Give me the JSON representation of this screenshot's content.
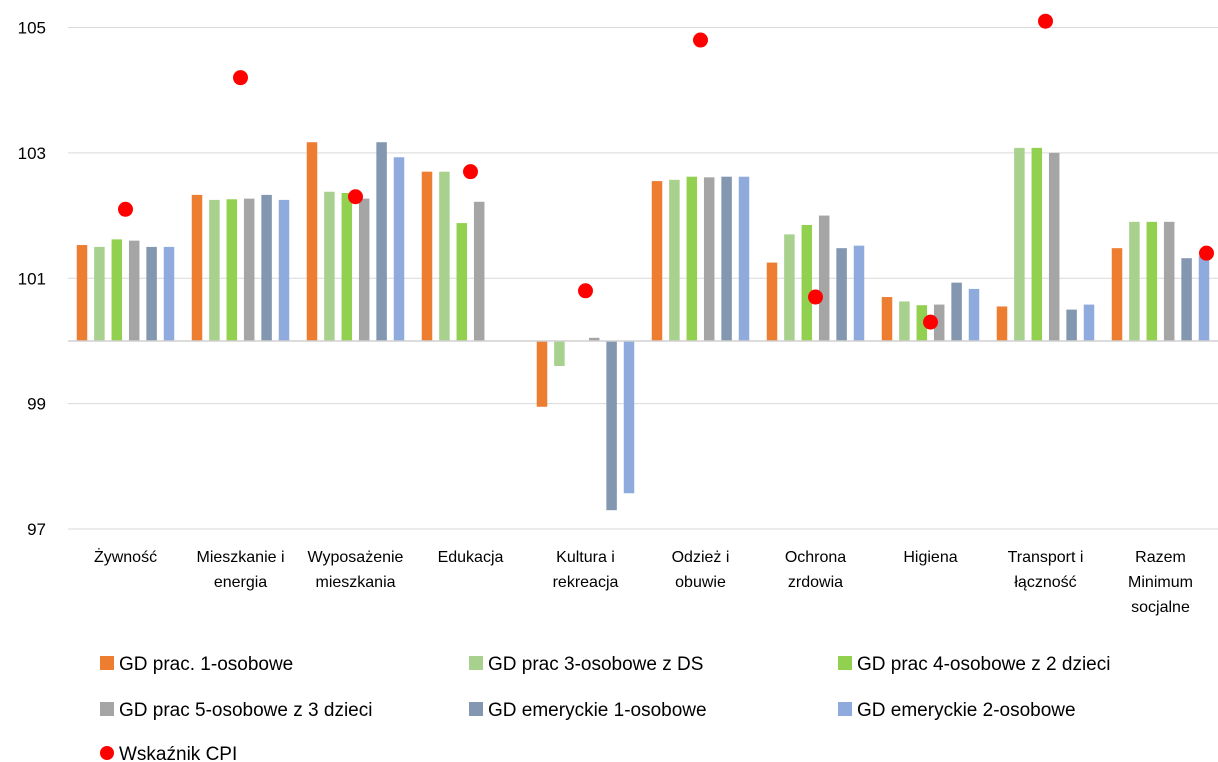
{
  "chart_data": {
    "type": "bar",
    "title": "",
    "xlabel": "",
    "ylabel": "",
    "ylim": [
      97,
      105.5
    ],
    "baseline": 100,
    "yticks": [
      "97",
      "99",
      "101",
      "103",
      "105"
    ],
    "grid": true,
    "legend_position": "bottom",
    "categories": [
      "Żywność",
      "Mieszkanie i energia",
      "Wyposażenie mieszkania",
      "Edukacja",
      "Kultura i rekreacja",
      "Odzież i obuwie",
      "Ochrona zrdowia",
      "Higiena",
      "Transport i łączność",
      "Razem Minimum socjalne"
    ],
    "category_lines": [
      [
        "Żywność"
      ],
      [
        "Mieszkanie i",
        "energia"
      ],
      [
        "Wyposażenie",
        "mieszkania"
      ],
      [
        "Edukacja"
      ],
      [
        "Kultura i",
        "rekreacja"
      ],
      [
        "Odzież i",
        "obuwie"
      ],
      [
        "Ochrona",
        "zrdowia"
      ],
      [
        "Higiena"
      ],
      [
        "Transport i",
        "łączność"
      ],
      [
        "Razem",
        "Minimum",
        "socjalne"
      ]
    ],
    "series": [
      {
        "name": "GD prac. 1-osobowe",
        "color": "#ED7D31",
        "values": [
          101.53,
          102.33,
          103.17,
          102.7,
          98.95,
          102.55,
          101.25,
          100.7,
          100.55,
          101.48
        ]
      },
      {
        "name": "GD prac 3-osobowe z DS",
        "color": "#A9D18E",
        "values": [
          101.5,
          102.25,
          102.38,
          102.7,
          99.6,
          102.57,
          101.7,
          100.63,
          103.08,
          101.9
        ]
      },
      {
        "name": "GD prac 4-osobowe z 2 dzieci",
        "color": "#92D050",
        "values": [
          101.62,
          102.26,
          102.36,
          101.88,
          null,
          102.62,
          101.85,
          100.57,
          103.08,
          101.9
        ]
      },
      {
        "name": "GD prac 5-osobowe z 3 dzieci",
        "color": "#A5A5A5",
        "values": [
          101.6,
          102.27,
          102.27,
          102.22,
          100.05,
          102.61,
          102.0,
          100.58,
          103.0,
          101.9
        ]
      },
      {
        "name": "GD emeryckie 1-osobowe",
        "color": "#8497B0",
        "values": [
          101.5,
          102.33,
          103.17,
          null,
          97.3,
          102.62,
          101.48,
          100.93,
          100.5,
          101.32
        ]
      },
      {
        "name": "GD emeryckie 2-osobowe",
        "color": "#8FAADC",
        "values": [
          101.5,
          102.25,
          102.93,
          null,
          97.57,
          102.62,
          101.52,
          100.83,
          100.58,
          101.35
        ]
      }
    ],
    "marker_series": {
      "name": "Wskaźnik CPI",
      "color": "#FF0000",
      "offsets": [
        0.5,
        0.5,
        0.5,
        0.5,
        0.5,
        0.5,
        0.5,
        0.5,
        0.5,
        0.9
      ],
      "values": [
        102.1,
        104.2,
        102.3,
        102.7,
        100.8,
        104.8,
        100.7,
        100.3,
        105.1,
        101.4
      ]
    }
  }
}
